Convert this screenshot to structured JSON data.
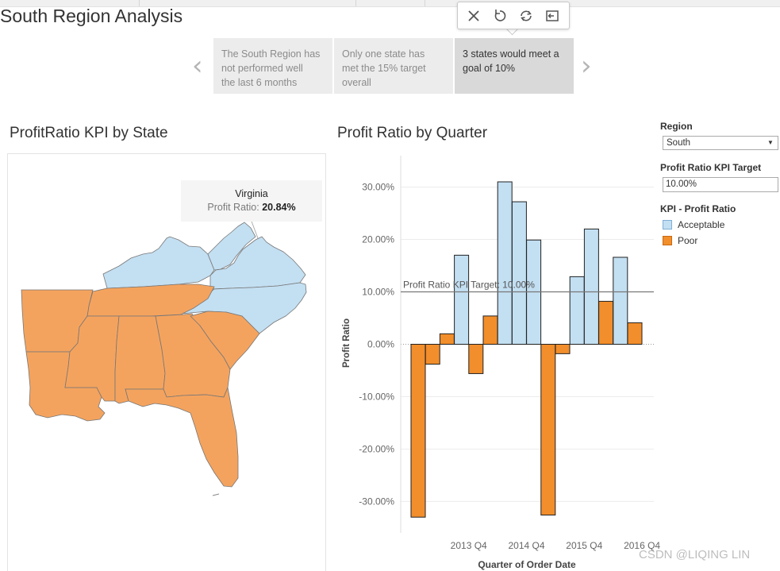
{
  "page": {
    "title": "South Region Analysis"
  },
  "story": {
    "points": [
      {
        "text": "The South Region has not performed well the last 6 months",
        "lines": [
          "The South Region has",
          "not performed well",
          "the last 6 months"
        ]
      },
      {
        "text": "Only one state has met the 15% target overall",
        "lines": [
          "Only one state has",
          "met the 15% target",
          "overall"
        ]
      },
      {
        "text": "3 states would meet a goal of 10%",
        "lines": [
          "3 states would meet a",
          "goal of 10%"
        ]
      }
    ],
    "active_index": 2,
    "toolbar_icons": [
      "close-icon",
      "undo-icon",
      "revert-icon",
      "exit-icon"
    ],
    "nav_icons": [
      "chevron-left-icon",
      "chevron-right-icon"
    ]
  },
  "map": {
    "title": "ProfitRatio KPI by State",
    "tooltip": {
      "state": "Virginia",
      "label": "Profit Ratio:",
      "value": "20.84%"
    }
  },
  "bar_panel": {
    "title": "Profit Ratio by Quarter"
  },
  "filters": {
    "region_label": "Region",
    "region_value": "South",
    "target_label": "Profit Ratio KPI Target",
    "target_value": "10.00%",
    "legend_title": "KPI - Profit Ratio",
    "legend": [
      {
        "name": "Acceptable",
        "color": "#c3dff2"
      },
      {
        "name": "Poor",
        "color": "#f28e2b"
      }
    ]
  },
  "colors": {
    "acceptable": "#c3dff2",
    "poor": "#f28e2b",
    "map_poor": "#f4a35e"
  },
  "watermark": "CSDN @LIQING LIN",
  "chart_data": {
    "type": "bar",
    "title": "Profit Ratio by Quarter",
    "xlabel": "Quarter of Order Date",
    "ylabel": "Profit Ratio",
    "ylim": [
      -36,
      36
    ],
    "yticks": [
      30,
      20,
      10,
      0,
      -10,
      -20,
      -30
    ],
    "ytick_labels": [
      "30.00%",
      "20.00%",
      "10.00%",
      "0.00%",
      "-10.00%",
      "-20.00%",
      "-30.00%"
    ],
    "x_tick_labels": [
      {
        "after_index": 4,
        "label": "2013 Q4"
      },
      {
        "after_index": 8,
        "label": "2014 Q4"
      },
      {
        "after_index": 12,
        "label": "2015 Q4"
      },
      {
        "after_index": 16,
        "label": "2016 Q4"
      }
    ],
    "values": [
      -33,
      -3.8,
      2,
      17,
      -5.6,
      5.4,
      31,
      27.2,
      19.9,
      -32.6,
      -1.8,
      12.9,
      22,
      8.2,
      16.6,
      4.1
    ],
    "categories_kpi": [
      "Poor",
      "Poor",
      "Poor",
      "Acceptable",
      "Poor",
      "Poor",
      "Acceptable",
      "Acceptable",
      "Acceptable",
      "Poor",
      "Poor",
      "Acceptable",
      "Acceptable",
      "Poor",
      "Acceptable",
      "Poor"
    ],
    "reference_line": {
      "value": 10,
      "label": "Profit Ratio KPI Target: 10.00%"
    },
    "grid": true
  }
}
